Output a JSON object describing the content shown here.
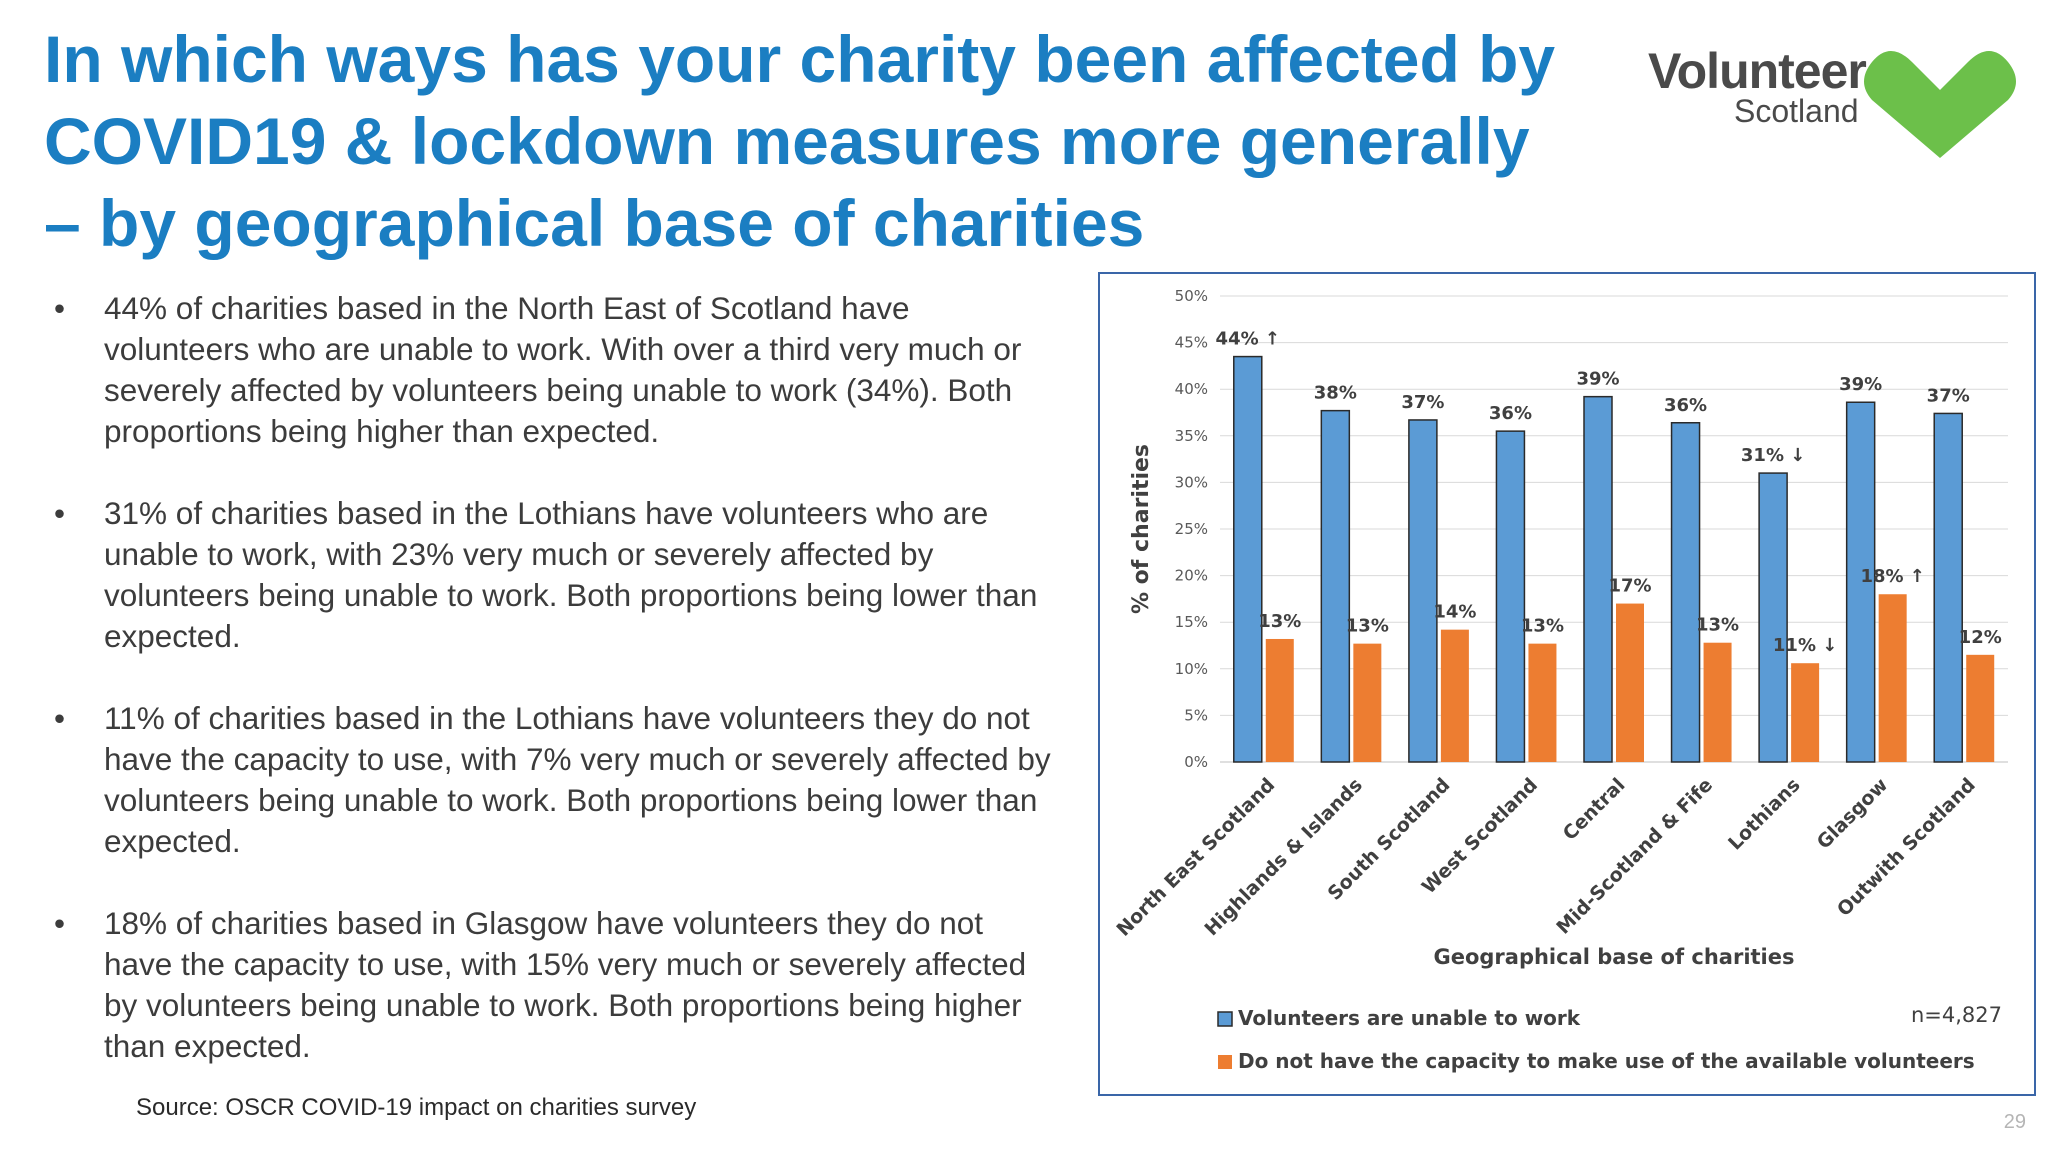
{
  "title": "In which ways has your charity been affected by COVID19 & lockdown measures more generally – by geographical base of charities",
  "logo": {
    "line1": "Volunteer",
    "line2": "Scotland",
    "colors": {
      "text": "#4a4a4a",
      "heart": "#6cc04a"
    }
  },
  "bullets": [
    "44% of charities based in the North East of Scotland have volunteers who are unable to work. With over a third very much or severely affected by volunteers being unable to work (34%). Both proportions being higher than expected.",
    "31% of charities based in the Lothians have volunteers who are unable to work, with 23% very much or severely affected by volunteers being unable to work. Both proportions being lower than expected.",
    "11% of charities based in the Lothians have volunteers they do not have the capacity to use, with 7% very much or severely affected by volunteers being unable to work. Both proportions being lower than expected.",
    "18% of charities based in Glasgow have volunteers they do not have the capacity to use, with 15% very much or severely affected by volunteers being unable to work. Both proportions being higher than expected."
  ],
  "source": "Source: OSCR COVID-19 impact on charities survey",
  "page_number": "29",
  "colors": {
    "title": "#1b7ec2",
    "series1": "#5b9bd5",
    "series2": "#ed7d31",
    "frame": "#3a66a8"
  },
  "chart_data": {
    "type": "bar",
    "title": "",
    "xlabel": "Geographical base of charities",
    "ylabel": "% of charities",
    "ylim": [
      0,
      50
    ],
    "yticks": [
      "0%",
      "5%",
      "10%",
      "15%",
      "20%",
      "25%",
      "30%",
      "35%",
      "40%",
      "45%",
      "50%"
    ],
    "grid": true,
    "legend": "bottom",
    "sample_note": "n=4,827",
    "categories": [
      "North East Scotland",
      "Highlands & Islands",
      "South Scotland",
      "West Scotland",
      "Central",
      "Mid-Scotland & Fife",
      "Lothians",
      "Glasgow",
      "Outwith Scotland"
    ],
    "series": [
      {
        "name": "Volunteers are unable to work",
        "values": [
          43.5,
          37.7,
          36.7,
          35.5,
          39.2,
          36.4,
          31,
          38.6,
          37.4
        ],
        "labels": [
          "44% ↑",
          "38%",
          "37%",
          "36%",
          "39%",
          "36%",
          "31% ↓",
          "39%",
          "37%"
        ]
      },
      {
        "name": "Do not have the capacity to make use of the available volunteers",
        "values": [
          13.2,
          12.7,
          14.2,
          12.7,
          17,
          12.8,
          10.6,
          18,
          11.5
        ],
        "labels": [
          "13%",
          "13%",
          "14%",
          "13%",
          "17%",
          "13%",
          "11% ↓",
          "18% ↑",
          "12%"
        ]
      }
    ]
  }
}
